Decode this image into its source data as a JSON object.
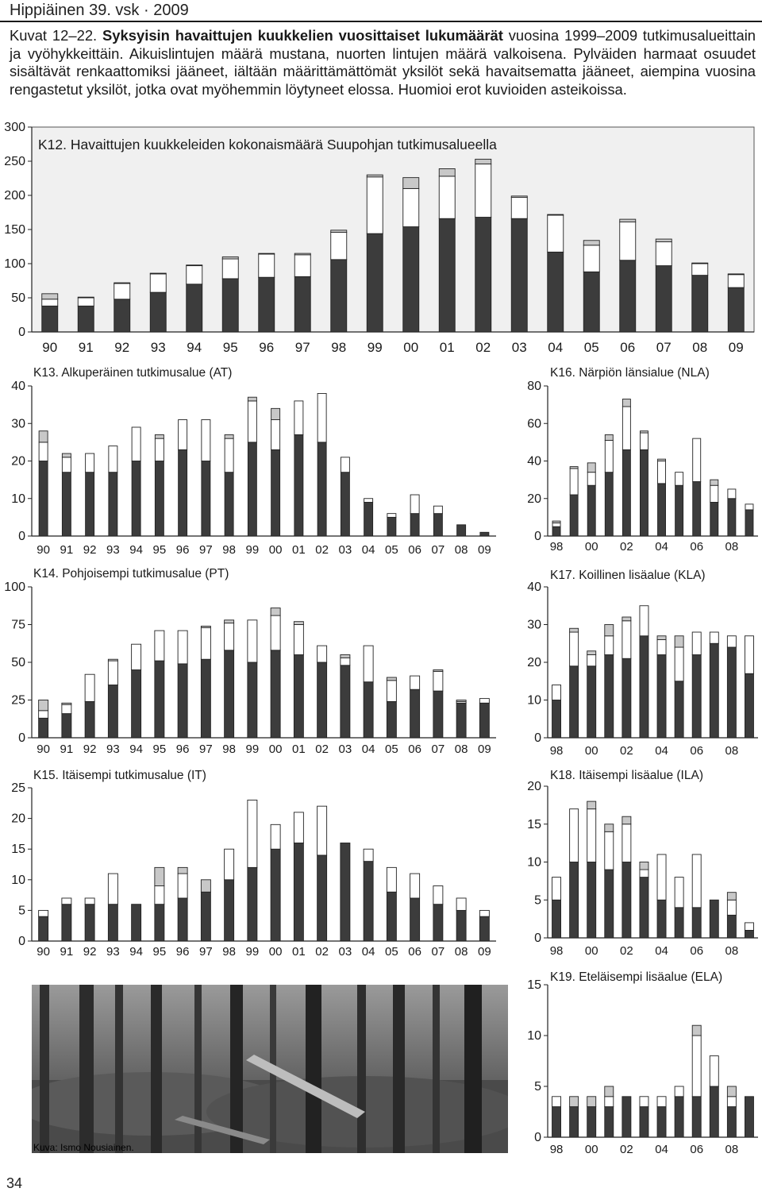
{
  "header": {
    "magazine": "Hippiäinen  39. vsk · 2009"
  },
  "caption": {
    "lead": "Kuvat 12–22. ",
    "bold": "Syksyisin havaittujen kuukkelien vuosittaiset lukumäärät",
    "rest": " vuosina 1999–2009 tutkimusalueittain ja vyöhykkeittäin. Aikuislintujen määrä mustana, nuorten lintujen määrä valkoisena. Pylväiden harmaat osuudet sisältävät renkaattomiksi jääneet, iältään määrittämättömät yksilöt sekä havaitsematta jääneet, aiempina vuosina rengastetut yksilöt, jotka ovat myöhemmin löytyneet elossa. Huomioi erot kuvioiden asteikoissa."
  },
  "photo_credit": "Kuva: Ismo Nousiainen.",
  "page_number": "34",
  "colors": {
    "adult": "#3c3c3c",
    "juvenile": "#ffffff",
    "unknown": "#c8c8c8",
    "plot_bg": "#f0f0f0"
  },
  "chart_data": [
    {
      "id": "K12",
      "type": "bar",
      "stacked": true,
      "title": "K12. Havaittujen kuukkeleiden kokonaismäärä Suupohjan tutkimusalueella",
      "categories": [
        "90",
        "91",
        "92",
        "93",
        "94",
        "95",
        "96",
        "97",
        "98",
        "99",
        "00",
        "01",
        "02",
        "03",
        "04",
        "05",
        "06",
        "07",
        "08",
        "09"
      ],
      "yticks": [
        "0",
        "50",
        "100",
        "150",
        "200",
        "250",
        "300"
      ],
      "ylim": [
        0,
        300
      ],
      "background": "grey",
      "series": [
        {
          "values": [
            38,
            38,
            48,
            58,
            70,
            78,
            80,
            81,
            106,
            144,
            154,
            166,
            168,
            166,
            117,
            88,
            105,
            97,
            83,
            65
          ]
        },
        {
          "values": [
            10,
            12,
            23,
            27,
            27,
            29,
            34,
            32,
            40,
            83,
            56,
            62,
            78,
            31,
            54,
            39,
            56,
            35,
            17,
            19
          ]
        },
        {
          "values": [
            8,
            1,
            1,
            1,
            1,
            3,
            1,
            2,
            3,
            3,
            16,
            11,
            7,
            2,
            1,
            7,
            4,
            4,
            1,
            1
          ]
        }
      ]
    },
    {
      "id": "K13",
      "type": "bar",
      "stacked": true,
      "title": "K13. Alkuperäinen tutkimusalue (AT)",
      "categories": [
        "90",
        "91",
        "92",
        "93",
        "94",
        "95",
        "96",
        "97",
        "98",
        "99",
        "00",
        "01",
        "02",
        "03",
        "04",
        "05",
        "06",
        "07",
        "08",
        "09"
      ],
      "yticks": [
        "0",
        "10",
        "20",
        "30",
        "40"
      ],
      "ylim": [
        0,
        40
      ],
      "series": [
        {
          "values": [
            20,
            17,
            17,
            17,
            20,
            20,
            23,
            20,
            17,
            25,
            23,
            27,
            25,
            17,
            9,
            5,
            6,
            6,
            3,
            1
          ]
        },
        {
          "values": [
            5,
            4,
            5,
            7,
            9,
            6,
            8,
            11,
            9,
            11,
            8,
            9,
            13,
            4,
            1,
            1,
            5,
            2,
            0,
            0
          ]
        },
        {
          "values": [
            3,
            1,
            0,
            0,
            0,
            1,
            0,
            0,
            1,
            1,
            3,
            0,
            0,
            0,
            0,
            0,
            0,
            0,
            0,
            0
          ]
        }
      ]
    },
    {
      "id": "K14",
      "type": "bar",
      "stacked": true,
      "title": "K14. Pohjoisempi tutkimusalue (PT)",
      "categories": [
        "90",
        "91",
        "92",
        "93",
        "94",
        "95",
        "96",
        "97",
        "98",
        "99",
        "00",
        "01",
        "02",
        "03",
        "04",
        "05",
        "06",
        "07",
        "08",
        "09"
      ],
      "yticks": [
        "0",
        "25",
        "50",
        "75",
        "100"
      ],
      "ylim": [
        0,
        100
      ],
      "series": [
        {
          "values": [
            13,
            16,
            24,
            35,
            45,
            51,
            49,
            52,
            58,
            50,
            58,
            55,
            50,
            48,
            37,
            24,
            32,
            31,
            23,
            23
          ]
        },
        {
          "values": [
            5,
            6,
            18,
            16,
            17,
            20,
            22,
            21,
            18,
            28,
            23,
            20,
            11,
            5,
            24,
            14,
            9,
            13,
            1,
            3
          ]
        },
        {
          "values": [
            7,
            1,
            0,
            1,
            0,
            0,
            0,
            1,
            2,
            0,
            5,
            2,
            0,
            2,
            0,
            2,
            0,
            1,
            1,
            0
          ]
        }
      ]
    },
    {
      "id": "K15",
      "type": "bar",
      "stacked": true,
      "title": "K15. Itäisempi tutkimusalue (IT)",
      "categories": [
        "90",
        "91",
        "92",
        "93",
        "94",
        "95",
        "96",
        "97",
        "98",
        "99",
        "00",
        "01",
        "02",
        "03",
        "04",
        "05",
        "06",
        "07",
        "08",
        "09"
      ],
      "yticks": [
        "0",
        "5",
        "10",
        "15",
        "20",
        "25"
      ],
      "ylim": [
        0,
        25
      ],
      "series": [
        {
          "values": [
            4,
            6,
            6,
            6,
            6,
            6,
            7,
            8,
            10,
            12,
            15,
            16,
            14,
            16,
            13,
            8,
            7,
            6,
            5,
            4
          ]
        },
        {
          "values": [
            1,
            1,
            1,
            5,
            0,
            3,
            4,
            0,
            5,
            11,
            4,
            5,
            8,
            0,
            2,
            4,
            4,
            3,
            2,
            1
          ]
        },
        {
          "values": [
            0,
            0,
            0,
            0,
            0,
            3,
            1,
            2,
            0,
            0,
            0,
            0,
            0,
            0,
            0,
            0,
            0,
            0,
            0,
            0
          ]
        }
      ]
    },
    {
      "id": "K16",
      "type": "bar",
      "stacked": true,
      "title": "K16. Närpiön länsialue (NLA)",
      "categories": [
        "98",
        "99",
        "00",
        "01",
        "02",
        "03",
        "04",
        "05",
        "06",
        "07",
        "08",
        "09"
      ],
      "xticks": [
        "98",
        "00",
        "02",
        "04",
        "06",
        "08"
      ],
      "yticks": [
        "0",
        "20",
        "40",
        "60",
        "80"
      ],
      "ylim": [
        0,
        80
      ],
      "series": [
        {
          "values": [
            5,
            22,
            27,
            34,
            46,
            46,
            28,
            27,
            29,
            18,
            20,
            14
          ]
        },
        {
          "values": [
            2,
            14,
            7,
            17,
            23,
            9,
            12,
            7,
            23,
            9,
            5,
            3
          ]
        },
        {
          "values": [
            1,
            1,
            5,
            3,
            4,
            1,
            1,
            0,
            0,
            3,
            0,
            0
          ]
        }
      ]
    },
    {
      "id": "K17",
      "type": "bar",
      "stacked": true,
      "title": "K17. Koillinen lisäalue (KLA)",
      "categories": [
        "98",
        "99",
        "00",
        "01",
        "02",
        "03",
        "04",
        "05",
        "06",
        "07",
        "08",
        "09"
      ],
      "xticks": [
        "98",
        "00",
        "02",
        "04",
        "06",
        "08"
      ],
      "yticks": [
        "0",
        "10",
        "20",
        "30",
        "40"
      ],
      "ylim": [
        0,
        40
      ],
      "series": [
        {
          "values": [
            10,
            19,
            19,
            22,
            21,
            27,
            22,
            15,
            22,
            25,
            24,
            17
          ]
        },
        {
          "values": [
            4,
            9,
            3,
            5,
            10,
            8,
            4,
            9,
            6,
            3,
            3,
            10
          ]
        },
        {
          "values": [
            0,
            1,
            1,
            3,
            1,
            0,
            1,
            3,
            0,
            0,
            0,
            0
          ]
        }
      ]
    },
    {
      "id": "K18",
      "type": "bar",
      "stacked": true,
      "title": "K18. Itäisempi lisäalue (ILA)",
      "categories": [
        "98",
        "99",
        "00",
        "01",
        "02",
        "03",
        "04",
        "05",
        "06",
        "07",
        "08",
        "09"
      ],
      "xticks": [
        "98",
        "00",
        "02",
        "04",
        "06",
        "08"
      ],
      "yticks": [
        "0",
        "5",
        "10",
        "15",
        "20"
      ],
      "ylim": [
        0,
        20
      ],
      "series": [
        {
          "values": [
            5,
            10,
            10,
            9,
            10,
            8,
            5,
            4,
            4,
            5,
            3,
            1
          ]
        },
        {
          "values": [
            3,
            7,
            7,
            5,
            5,
            1,
            6,
            4,
            7,
            0,
            2,
            1
          ]
        },
        {
          "values": [
            0,
            0,
            1,
            1,
            1,
            1,
            0,
            0,
            0,
            0,
            1,
            0
          ]
        }
      ]
    },
    {
      "id": "K19",
      "type": "bar",
      "stacked": true,
      "title": "K19. Eteläisempi lisäalue (ELA)",
      "categories": [
        "98",
        "99",
        "00",
        "01",
        "02",
        "03",
        "04",
        "05",
        "06",
        "07",
        "08",
        "09"
      ],
      "xticks": [
        "98",
        "00",
        "02",
        "04",
        "06",
        "08"
      ],
      "yticks": [
        "0",
        "5",
        "10",
        "15"
      ],
      "ylim": [
        0,
        15
      ],
      "series": [
        {
          "values": [
            3,
            3,
            3,
            3,
            4,
            3,
            3,
            4,
            4,
            5,
            3,
            4
          ]
        },
        {
          "values": [
            1,
            0,
            0,
            1,
            0,
            1,
            1,
            1,
            6,
            3,
            1,
            0
          ]
        },
        {
          "values": [
            0,
            1,
            1,
            1,
            0,
            0,
            0,
            0,
            1,
            0,
            1,
            0
          ]
        }
      ]
    }
  ]
}
